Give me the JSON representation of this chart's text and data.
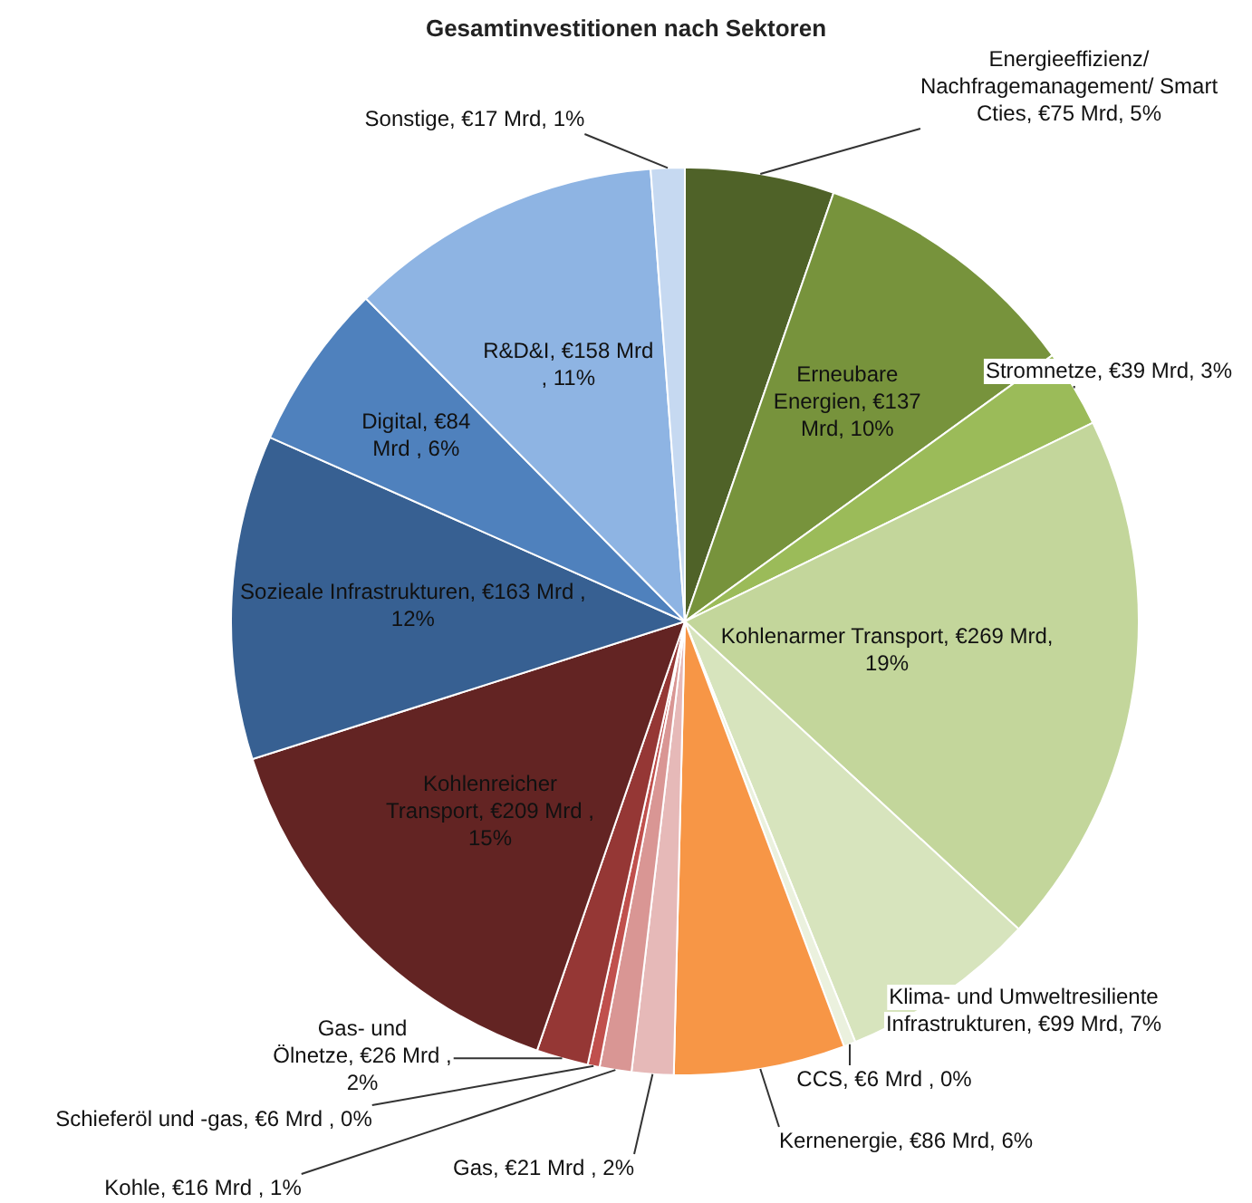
{
  "chart_data": {
    "type": "pie",
    "title": "Gesamtinvestitionen nach Sektoren",
    "categories": [
      "Energieeffizienz/ Nachfragemanagement/ Smart Cties",
      "Erneubare Energien",
      "Stromnetze",
      "Kohlenarmer Transport",
      "Klima- und Umweltresiliente Infrastrukturen",
      "CCS",
      "Kernenergie",
      "Gas",
      "Kohle",
      "Schieferöl und -gas",
      "Gas- und Ölnetze",
      "Kohlenreicher Transport",
      "Sozieale Infrastrukturen",
      "Digital",
      "R&D&I",
      "Sonstige"
    ],
    "values": [
      75,
      137,
      39,
      269,
      99,
      6,
      86,
      21,
      16,
      6,
      26,
      209,
      163,
      84,
      158,
      17
    ],
    "value_labels": [
      "€75 Mrd, 5%",
      "€137 Mrd, 10%",
      "€39 Mrd, 3%",
      "€269 Mrd, 19%",
      "€99 Mrd, 7%",
      "€6 Mrd , 0%",
      "€86 Mrd, 6%",
      "€21 Mrd , 2%",
      "€16 Mrd , 1%",
      "€6 Mrd , 0%",
      "€26 Mrd , 2%",
      "€209 Mrd , 15%",
      "€163 Mrd , 12%",
      "€84 Mrd , 6%",
      "€158 Mrd , 11%",
      "€17 Mrd, 1%"
    ],
    "colors": [
      "#4f6228",
      "#77933c",
      "#9bbb59",
      "#c3d69b",
      "#d7e4bd",
      "#ebf1de",
      "#f79646",
      "#e6b9b8",
      "#d99694",
      "#c0504d",
      "#953735",
      "#632423",
      "#376092",
      "#4f81bd",
      "#8eb4e3",
      "#c6d9f1"
    ],
    "legend": false
  }
}
